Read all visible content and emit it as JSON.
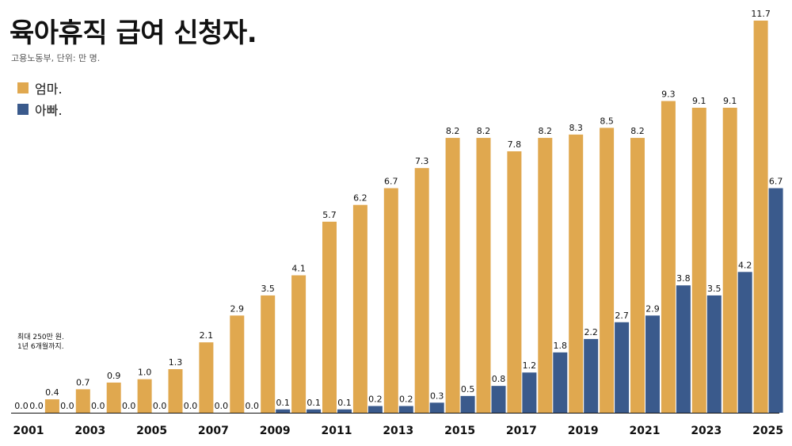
{
  "header": {
    "title": "육아휴직 급여 신청자.",
    "subtitle": "고용노동부, 단위: 만 명."
  },
  "note": {
    "line1": "최대 250만 원.",
    "line2": "1년 6개월까지."
  },
  "colors": {
    "mother": "#E0A84F",
    "father": "#3A5A8C"
  },
  "chart_data": {
    "type": "bar",
    "title": "육아휴직 급여 신청자.",
    "subtitle": "고용노동부, 단위: 만 명.",
    "categories": [
      "2001",
      "2002",
      "2003",
      "2004",
      "2005",
      "2006",
      "2007",
      "2008",
      "2009",
      "2010",
      "2011",
      "2012",
      "2013",
      "2014",
      "2015",
      "2016",
      "2017",
      "2018",
      "2019",
      "2020",
      "2021",
      "2022",
      "2023",
      "2024",
      "2025"
    ],
    "x_tick_labels": [
      "2001",
      "2003",
      "2005",
      "2007",
      "2009",
      "2011",
      "2013",
      "2015",
      "2017",
      "2019",
      "2021",
      "2023",
      "2025"
    ],
    "series": [
      {
        "name": "엄마.",
        "color": "#E0A84F",
        "values": [
          0.0,
          0.4,
          0.7,
          0.9,
          1.0,
          1.3,
          2.1,
          2.9,
          3.5,
          4.1,
          5.7,
          6.2,
          6.7,
          7.3,
          8.2,
          8.2,
          7.8,
          8.2,
          8.3,
          8.5,
          8.2,
          9.3,
          9.1,
          9.1,
          11.7
        ]
      },
      {
        "name": "아빠.",
        "color": "#3A5A8C",
        "values": [
          0.0,
          0.0,
          0.0,
          0.0,
          0.0,
          0.0,
          0.0,
          0.0,
          0.1,
          0.1,
          0.1,
          0.2,
          0.2,
          0.3,
          0.5,
          0.8,
          1.2,
          1.8,
          2.2,
          2.7,
          2.9,
          3.8,
          3.5,
          4.2,
          6.7
        ]
      }
    ],
    "ylim": [
      0,
      11.7
    ],
    "grid": false,
    "legend_position": "top-left",
    "xlabel": "",
    "ylabel": ""
  }
}
